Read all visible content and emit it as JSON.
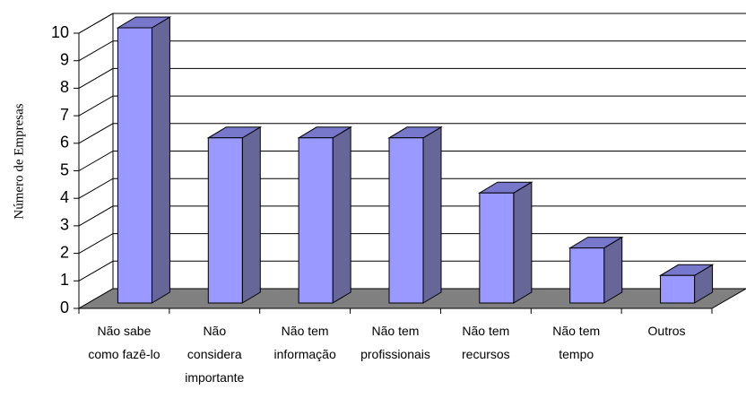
{
  "chart_data": {
    "type": "bar3d",
    "ylabel": "Número de Empresas",
    "categories": [
      "Não sabe\ncomo fazê-lo",
      "Não\nconsidera\nimportante",
      "Não tem\ninformação",
      "Não tem\nprofissionais",
      "Não tem\nrecursos",
      "Não tem\ntempo",
      "Outros"
    ],
    "values": [
      10,
      6,
      6,
      6,
      4,
      2,
      1
    ],
    "color": "#9999ff",
    "ylim": [
      0,
      10
    ],
    "yticks": [
      0,
      1,
      2,
      3,
      4,
      5,
      6,
      7,
      8,
      9,
      10
    ],
    "grid": true
  }
}
